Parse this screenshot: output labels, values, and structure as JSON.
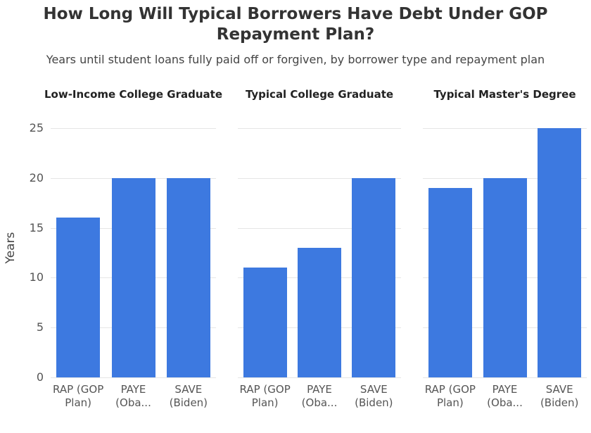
{
  "title": "How Long Will Typical Borrowers Have Debt Under GOP Repayment Plan?",
  "subtitle": "Years until student loans fully paid off or forgiven, by borrower type and repayment plan",
  "chart_data": [
    {
      "type": "bar",
      "title": "Low-Income College Graduate",
      "ylabel": "Years",
      "categories": [
        "RAP (GOP Plan)",
        "PAYE (Oba...",
        "SAVE (Biden)"
      ],
      "values": [
        16,
        20,
        20
      ],
      "color": "#3d79e0",
      "ylim": [
        0,
        25
      ],
      "yticks": [
        0,
        5,
        10,
        15,
        20,
        25
      ],
      "grid": true
    },
    {
      "type": "bar",
      "title": "Typical College Graduate",
      "categories": [
        "RAP (GOP Plan)",
        "PAYE (Oba...",
        "SAVE (Biden)"
      ],
      "values": [
        11,
        13,
        20
      ],
      "color": "#3d79e0",
      "ylim": [
        0,
        25
      ],
      "yticks": [
        0,
        5,
        10,
        15,
        20,
        25
      ],
      "grid": true
    },
    {
      "type": "bar",
      "title": "Typical Master's Degree",
      "categories": [
        "RAP (GOP Plan)",
        "PAYE (Oba...",
        "SAVE (Biden)"
      ],
      "values": [
        19,
        20,
        25
      ],
      "color": "#3d79e0",
      "ylim": [
        0,
        25
      ],
      "yticks": [
        0,
        5,
        10,
        15,
        20,
        25
      ],
      "grid": true
    }
  ]
}
